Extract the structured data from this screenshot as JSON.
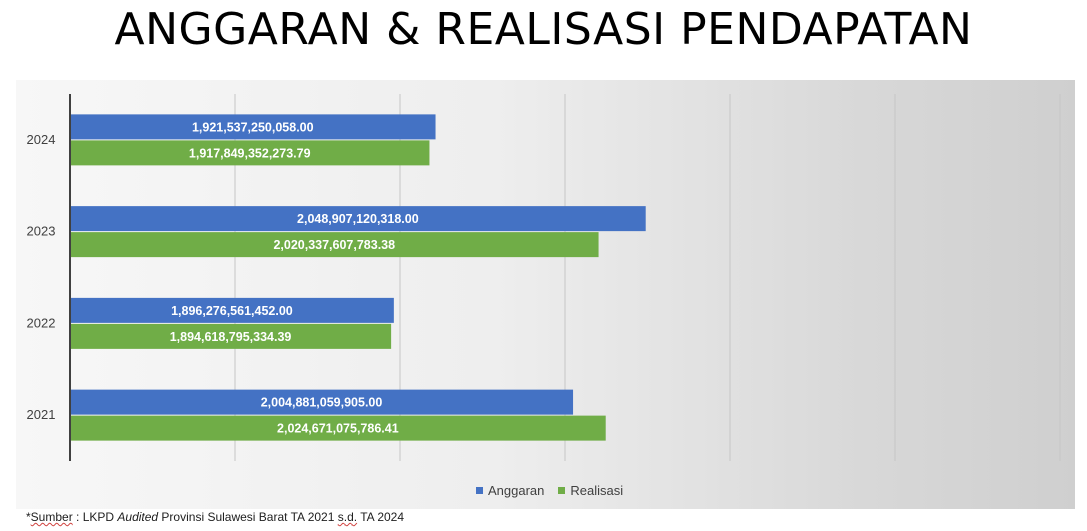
{
  "title": "ANGGARAN & REALISASI PENDAPATAN",
  "chart_data": {
    "type": "bar",
    "orientation": "horizontal",
    "categories": [
      "2024",
      "2023",
      "2022",
      "2021"
    ],
    "series": [
      {
        "name": "Anggaran",
        "color": "#4472c4",
        "values": [
          1921537250058.0,
          2048907120318.0,
          1896276561452.0,
          2004881059905.0
        ],
        "labels": [
          "1,921,537,250,058.00",
          "2,048,907,120,318.00",
          "1,896,276,561,452.00",
          "2,004,881,059,905.00"
        ]
      },
      {
        "name": "Realisasi",
        "color": "#70ad47",
        "values": [
          1917849352273.79,
          2020337607783.38,
          1894618795334.39,
          2024671075786.41
        ],
        "labels": [
          "1,917,849,352,273.79",
          "2,020,337,607,783.38",
          "1,894,618,795,334.39",
          "2,024,671,075,786.41"
        ]
      }
    ],
    "xlim": [
      1700000000000,
      2300000000000
    ],
    "grid": true,
    "legend_position": "bottom"
  },
  "source": {
    "prefix": "*",
    "sumber": "Sumber",
    "text1": " : LKPD ",
    "audited": "Audited",
    "text2": " Provinsi Sulawesi Barat TA 2021 ",
    "sd": "s.d.",
    "text3": " TA 2024"
  }
}
